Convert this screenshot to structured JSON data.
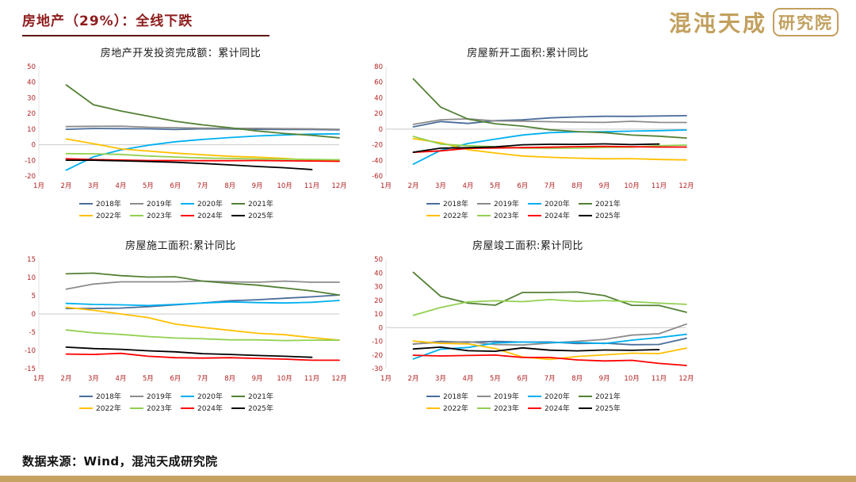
{
  "header": {
    "title": "房地产（29%）：全线下跌",
    "logo_main": "混沌天成",
    "logo_badge": "研究院"
  },
  "footer": {
    "source": "数据来源：Wind，混沌天成研究院"
  },
  "colors": {
    "title_red": "#8e1c1c",
    "axis_label_red": "#b22222",
    "zero_line": "#c9c9c9",
    "axis_line": "#e3e3e3",
    "accent_gold": "#c6a263"
  },
  "chart_data": [
    {
      "type": "line",
      "title": "房地产开发投资完成额：累计同比",
      "x_labels": [
        "1月",
        "2月",
        "3月",
        "4月",
        "5月",
        "6月",
        "7月",
        "8月",
        "9月",
        "10月",
        "11月",
        "12月"
      ],
      "ylim": [
        -20,
        50
      ],
      "yticks": [
        50,
        40,
        30,
        20,
        10,
        0,
        -10,
        -20
      ],
      "grid": "zero-line-only",
      "legend_position": "bottom",
      "series": [
        {
          "name": "2018年",
          "color": "#4a6d9b",
          "values": [
            null,
            9.9,
            10.4,
            10.3,
            10.2,
            9.7,
            10.2,
            10.1,
            9.9,
            9.7,
            9.7,
            9.5
          ]
        },
        {
          "name": "2019年",
          "color": "#8c8c8c",
          "values": [
            null,
            11.6,
            11.8,
            11.9,
            11.2,
            10.9,
            10.6,
            10.5,
            10.5,
            10.3,
            10.2,
            9.9
          ]
        },
        {
          "name": "2020年",
          "color": "#00b0f0",
          "values": [
            null,
            -16.3,
            -7.7,
            -3.3,
            -0.3,
            1.9,
            3.4,
            4.6,
            5.6,
            6.3,
            6.8,
            7.0
          ]
        },
        {
          "name": "2021年",
          "color": "#538135",
          "values": [
            null,
            38.3,
            25.6,
            21.6,
            18.3,
            15.0,
            12.7,
            10.9,
            8.8,
            7.2,
            6.0,
            4.4
          ]
        },
        {
          "name": "2022年",
          "color": "#ffc000",
          "values": [
            null,
            3.7,
            0.7,
            -2.7,
            -4.0,
            -5.4,
            -6.4,
            -7.4,
            -8.0,
            -8.8,
            -9.8,
            -10.0
          ]
        },
        {
          "name": "2023年",
          "color": "#92d050",
          "values": [
            null,
            -5.7,
            -5.8,
            -6.2,
            -7.2,
            -7.9,
            -8.5,
            -8.8,
            -9.1,
            -9.3,
            -9.4,
            -9.6
          ]
        },
        {
          "name": "2024年",
          "color": "#ff0000",
          "values": [
            null,
            -9.0,
            -9.5,
            -9.8,
            -10.1,
            -10.1,
            -10.2,
            -10.2,
            -10.1,
            -10.3,
            -10.4,
            -10.6
          ]
        },
        {
          "name": "2025年",
          "color": "#000000",
          "values": [
            null,
            -9.9,
            -9.9,
            -10.3,
            -10.7,
            -11.2,
            -12.0,
            -12.9,
            -13.9,
            -14.7,
            -15.9,
            null
          ]
        }
      ]
    },
    {
      "type": "line",
      "title": "房屋新开工面积:累计同比",
      "x_labels": [
        "1月",
        "2月",
        "3月",
        "4月",
        "5月",
        "6月",
        "7月",
        "8月",
        "9月",
        "10月",
        "11月",
        "12月"
      ],
      "ylim": [
        -60,
        80
      ],
      "yticks": [
        80,
        60,
        40,
        20,
        0,
        -20,
        -40,
        -60
      ],
      "grid": "zero-line-only",
      "legend_position": "bottom",
      "series": [
        {
          "name": "2018年",
          "color": "#4a6d9b",
          "values": [
            null,
            2.9,
            9.7,
            7.3,
            10.8,
            11.8,
            14.4,
            15.6,
            16.4,
            16.3,
            16.8,
            17.2
          ]
        },
        {
          "name": "2019年",
          "color": "#8c8c8c",
          "values": [
            null,
            6.0,
            11.9,
            13.1,
            10.5,
            10.1,
            9.5,
            8.9,
            8.6,
            10.0,
            8.6,
            8.5
          ]
        },
        {
          "name": "2020年",
          "color": "#00b0f0",
          "values": [
            null,
            -44.9,
            -27.2,
            -18.4,
            -12.8,
            -7.6,
            -4.5,
            -3.6,
            -3.4,
            -2.6,
            -2.0,
            -1.2
          ]
        },
        {
          "name": "2021年",
          "color": "#538135",
          "values": [
            null,
            64.3,
            28.2,
            12.8,
            6.9,
            3.8,
            -0.9,
            -3.2,
            -4.5,
            -7.7,
            -9.1,
            -11.4
          ]
        },
        {
          "name": "2022年",
          "color": "#ffc000",
          "values": [
            null,
            -12.2,
            -17.5,
            -26.3,
            -30.6,
            -34.4,
            -36.1,
            -37.2,
            -38.0,
            -37.8,
            -38.9,
            -39.4
          ]
        },
        {
          "name": "2023年",
          "color": "#92d050",
          "values": [
            null,
            -9.4,
            -19.2,
            -21.2,
            -22.6,
            -24.3,
            -24.5,
            -24.4,
            -23.4,
            -23.2,
            -21.2,
            -20.4
          ]
        },
        {
          "name": "2024年",
          "color": "#ff0000",
          "values": [
            null,
            -29.7,
            -27.8,
            -24.6,
            -24.2,
            -23.7,
            -23.2,
            -22.5,
            -22.2,
            -22.6,
            -23.0,
            -23.0
          ]
        },
        {
          "name": "2025年",
          "color": "#000000",
          "values": [
            null,
            -29.6,
            -24.4,
            -23.8,
            -22.8,
            -20.0,
            -19.4,
            -19.5,
            -18.9,
            -19.8,
            -19.1,
            null
          ]
        }
      ]
    },
    {
      "type": "line",
      "title": "房屋施工面积:累计同比",
      "x_labels": [
        "1月",
        "2月",
        "3月",
        "4月",
        "5月",
        "6月",
        "7月",
        "8月",
        "9月",
        "10月",
        "11月",
        "12月"
      ],
      "ylim": [
        -15,
        15
      ],
      "yticks": [
        15,
        10,
        5,
        0,
        -5,
        -10,
        -15
      ],
      "grid": "zero-line-only",
      "legend_position": "bottom",
      "series": [
        {
          "name": "2018年",
          "color": "#4a6d9b",
          "values": [
            null,
            1.5,
            1.5,
            1.6,
            2.0,
            2.5,
            3.0,
            3.6,
            3.9,
            4.3,
            4.7,
            5.2
          ]
        },
        {
          "name": "2019年",
          "color": "#8c8c8c",
          "values": [
            null,
            6.8,
            8.2,
            8.8,
            8.8,
            8.8,
            9.0,
            8.8,
            8.7,
            9.0,
            8.7,
            8.7
          ]
        },
        {
          "name": "2020年",
          "color": "#00b0f0",
          "values": [
            null,
            2.9,
            2.6,
            2.5,
            2.3,
            2.6,
            3.0,
            3.3,
            3.1,
            3.0,
            3.2,
            3.7
          ]
        },
        {
          "name": "2021年",
          "color": "#538135",
          "values": [
            null,
            11.0,
            11.2,
            10.5,
            10.1,
            10.2,
            9.0,
            8.4,
            7.9,
            7.1,
            6.3,
            5.2
          ]
        },
        {
          "name": "2022年",
          "color": "#ffc000",
          "values": [
            null,
            1.8,
            1.0,
            0.0,
            -1.0,
            -2.8,
            -3.7,
            -4.5,
            -5.3,
            -5.7,
            -6.5,
            -7.2
          ]
        },
        {
          "name": "2023年",
          "color": "#92d050",
          "values": [
            null,
            -4.4,
            -5.2,
            -5.6,
            -6.2,
            -6.6,
            -6.8,
            -7.1,
            -7.1,
            -7.3,
            -7.2,
            -7.2
          ]
        },
        {
          "name": "2024年",
          "color": "#ff0000",
          "values": [
            null,
            -11.0,
            -11.1,
            -10.8,
            -11.6,
            -12.0,
            -12.1,
            -12.0,
            -12.2,
            -12.4,
            -12.7,
            -12.7
          ]
        },
        {
          "name": "2025年",
          "color": "#000000",
          "values": [
            null,
            -9.1,
            -9.5,
            -9.7,
            -10.1,
            -10.4,
            -10.9,
            -11.1,
            -11.4,
            -11.6,
            -11.9,
            null
          ]
        }
      ]
    },
    {
      "type": "line",
      "title": "房屋竣工面积:累计同比",
      "x_labels": [
        "1月",
        "2月",
        "3月",
        "4月",
        "5月",
        "6月",
        "7月",
        "8月",
        "9月",
        "10月",
        "11月",
        "12月"
      ],
      "ylim": [
        -30,
        50
      ],
      "yticks": [
        50,
        40,
        30,
        20,
        10,
        0,
        -10,
        -20,
        -30
      ],
      "grid": "zero-line-only",
      "legend_position": "bottom",
      "series": [
        {
          "name": "2018年",
          "color": "#4a6d9b",
          "values": [
            null,
            -12.1,
            -10.1,
            -10.7,
            -10.1,
            -10.6,
            -10.5,
            -11.6,
            -11.4,
            -12.5,
            -12.3,
            -7.8
          ]
        },
        {
          "name": "2019年",
          "color": "#8c8c8c",
          "values": [
            null,
            -11.9,
            -10.8,
            -10.3,
            -12.4,
            -12.7,
            -11.3,
            -10.0,
            -8.6,
            -5.5,
            -4.5,
            2.6
          ]
        },
        {
          "name": "2020年",
          "color": "#00b0f0",
          "values": [
            null,
            -22.9,
            -15.8,
            -14.5,
            -11.3,
            -10.5,
            -10.9,
            -10.8,
            -11.6,
            -9.2,
            -7.3,
            -4.9
          ]
        },
        {
          "name": "2021年",
          "color": "#538135",
          "values": [
            null,
            40.4,
            22.9,
            17.9,
            16.4,
            25.7,
            25.7,
            26.0,
            23.4,
            16.3,
            16.2,
            11.2
          ]
        },
        {
          "name": "2022年",
          "color": "#ffc000",
          "values": [
            null,
            -9.8,
            -11.5,
            -11.9,
            -15.3,
            -21.5,
            -23.3,
            -21.1,
            -19.9,
            -18.7,
            -19.0,
            -15.0
          ]
        },
        {
          "name": "2023年",
          "color": "#92d050",
          "values": [
            null,
            9.0,
            14.7,
            18.8,
            19.6,
            19.0,
            20.5,
            19.2,
            19.8,
            19.0,
            17.9,
            17.0
          ]
        },
        {
          "name": "2024年",
          "color": "#ff0000",
          "values": [
            null,
            -20.2,
            -20.7,
            -20.4,
            -20.1,
            -21.8,
            -21.8,
            -23.6,
            -24.4,
            -23.9,
            -26.2,
            -27.7
          ]
        },
        {
          "name": "2025年",
          "color": "#000000",
          "values": [
            null,
            -15.6,
            -14.3,
            -16.9,
            -17.3,
            -14.8,
            -16.5,
            -17.0,
            -16.4,
            -16.6,
            -16.1,
            null
          ]
        }
      ]
    }
  ]
}
